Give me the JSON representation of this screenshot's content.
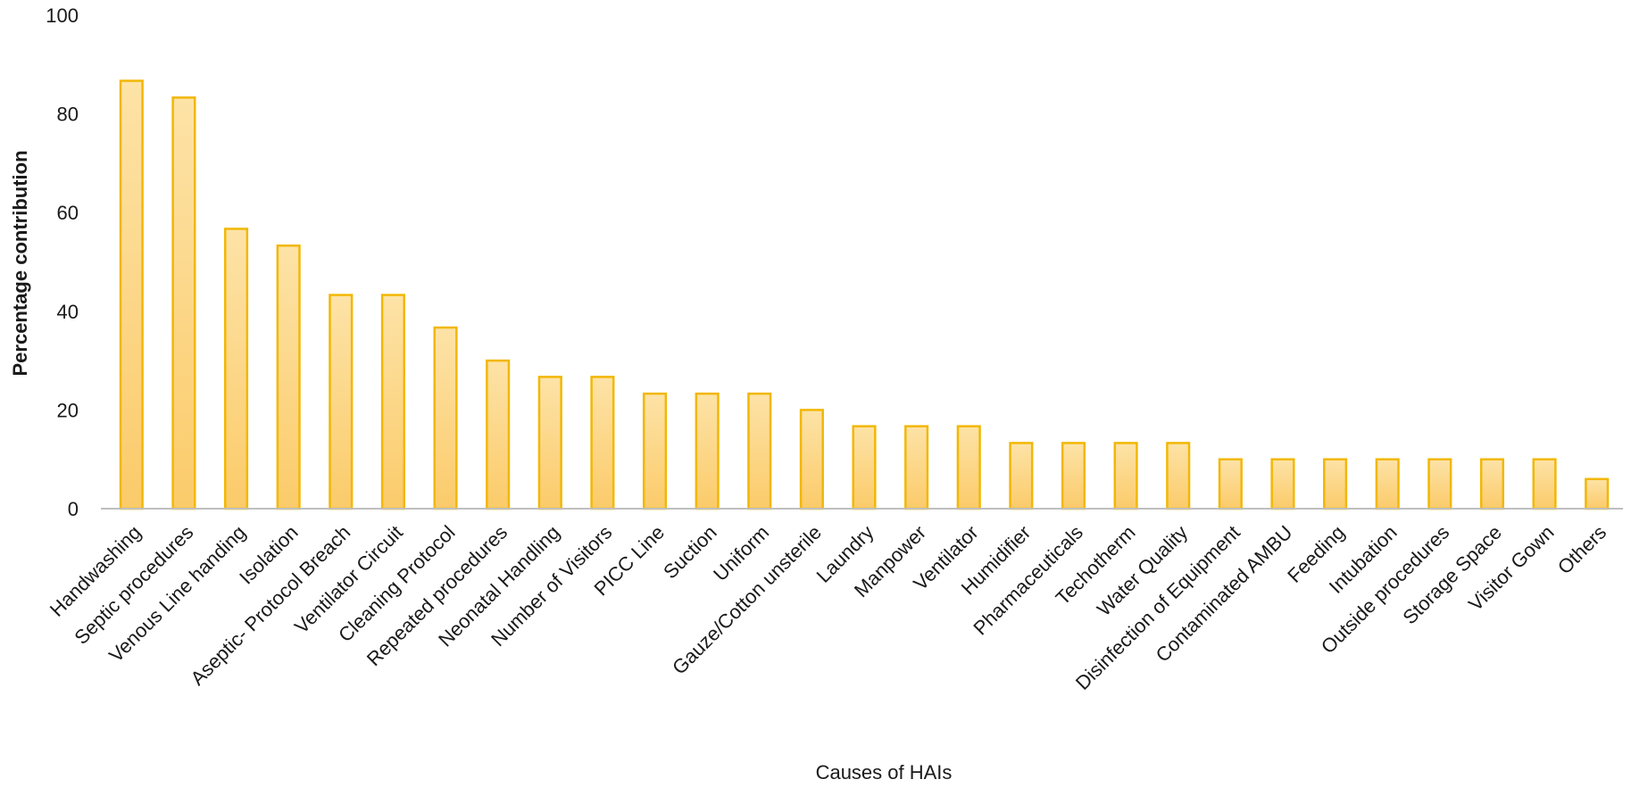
{
  "chart_data": {
    "type": "bar",
    "title": "",
    "xlabel": "Causes of HAIs",
    "ylabel": "Percentage contribution",
    "ylim": [
      0,
      100
    ],
    "yticks": [
      0,
      20,
      40,
      60,
      80,
      100
    ],
    "grid": false,
    "legend": "none",
    "colors": {
      "bar_fill_top": "#FDE3A7",
      "bar_fill_bottom": "#FBCB6A",
      "bar_stroke": "#F2B705",
      "axis": "#BFBFBF"
    },
    "categories": [
      "Handwashing",
      "Septic procedures",
      "Venous Line handing",
      "Isolation",
      "Aseptic-  Protocol Breach",
      "Ventilator Circuit",
      "Cleaning Protocol",
      "Repeated procedures",
      "Neonatal Handling",
      "Number of Visitors",
      "PICC Line",
      "Suction",
      "Uniform",
      "Gauze/Cotton unsterile",
      "Laundry",
      "Manpower",
      "Ventilator",
      "Humidifier",
      "Pharmaceuticals",
      "Techotherm",
      "Water Quality",
      "Disinfection of Equipment",
      "Contaminated AMBU",
      "Feeding",
      "Intubation",
      "Outside procedures",
      "Storage Space",
      "Visitor Gown",
      "Others"
    ],
    "values": [
      86.7,
      83.3,
      56.7,
      53.3,
      43.3,
      43.3,
      36.7,
      30,
      26.7,
      26.7,
      23.3,
      23.3,
      23.3,
      20,
      16.7,
      16.7,
      16.7,
      13.3,
      13.3,
      13.3,
      13.3,
      10,
      10,
      10,
      10,
      10,
      10,
      10,
      6
    ]
  }
}
